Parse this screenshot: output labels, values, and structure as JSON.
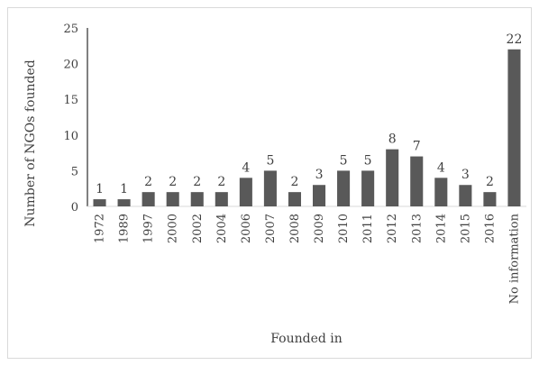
{
  "chart_data": {
    "type": "bar",
    "categories": [
      "1972",
      "1989",
      "1997",
      "2000",
      "2002",
      "2004",
      "2006",
      "2007",
      "2008",
      "2009",
      "2010",
      "2011",
      "2012",
      "2013",
      "2014",
      "2015",
      "2016",
      "No information"
    ],
    "values": [
      1,
      1,
      2,
      2,
      2,
      2,
      4,
      5,
      2,
      3,
      5,
      5,
      8,
      7,
      4,
      3,
      2,
      22
    ],
    "xlabel": "Founded in",
    "ylabel": "Number of NGOs founded",
    "ylim": [
      0,
      25
    ],
    "yticks": [
      0,
      5,
      10,
      15,
      20,
      25
    ],
    "bar_color": "#595959",
    "grid": false,
    "legend": "none"
  }
}
